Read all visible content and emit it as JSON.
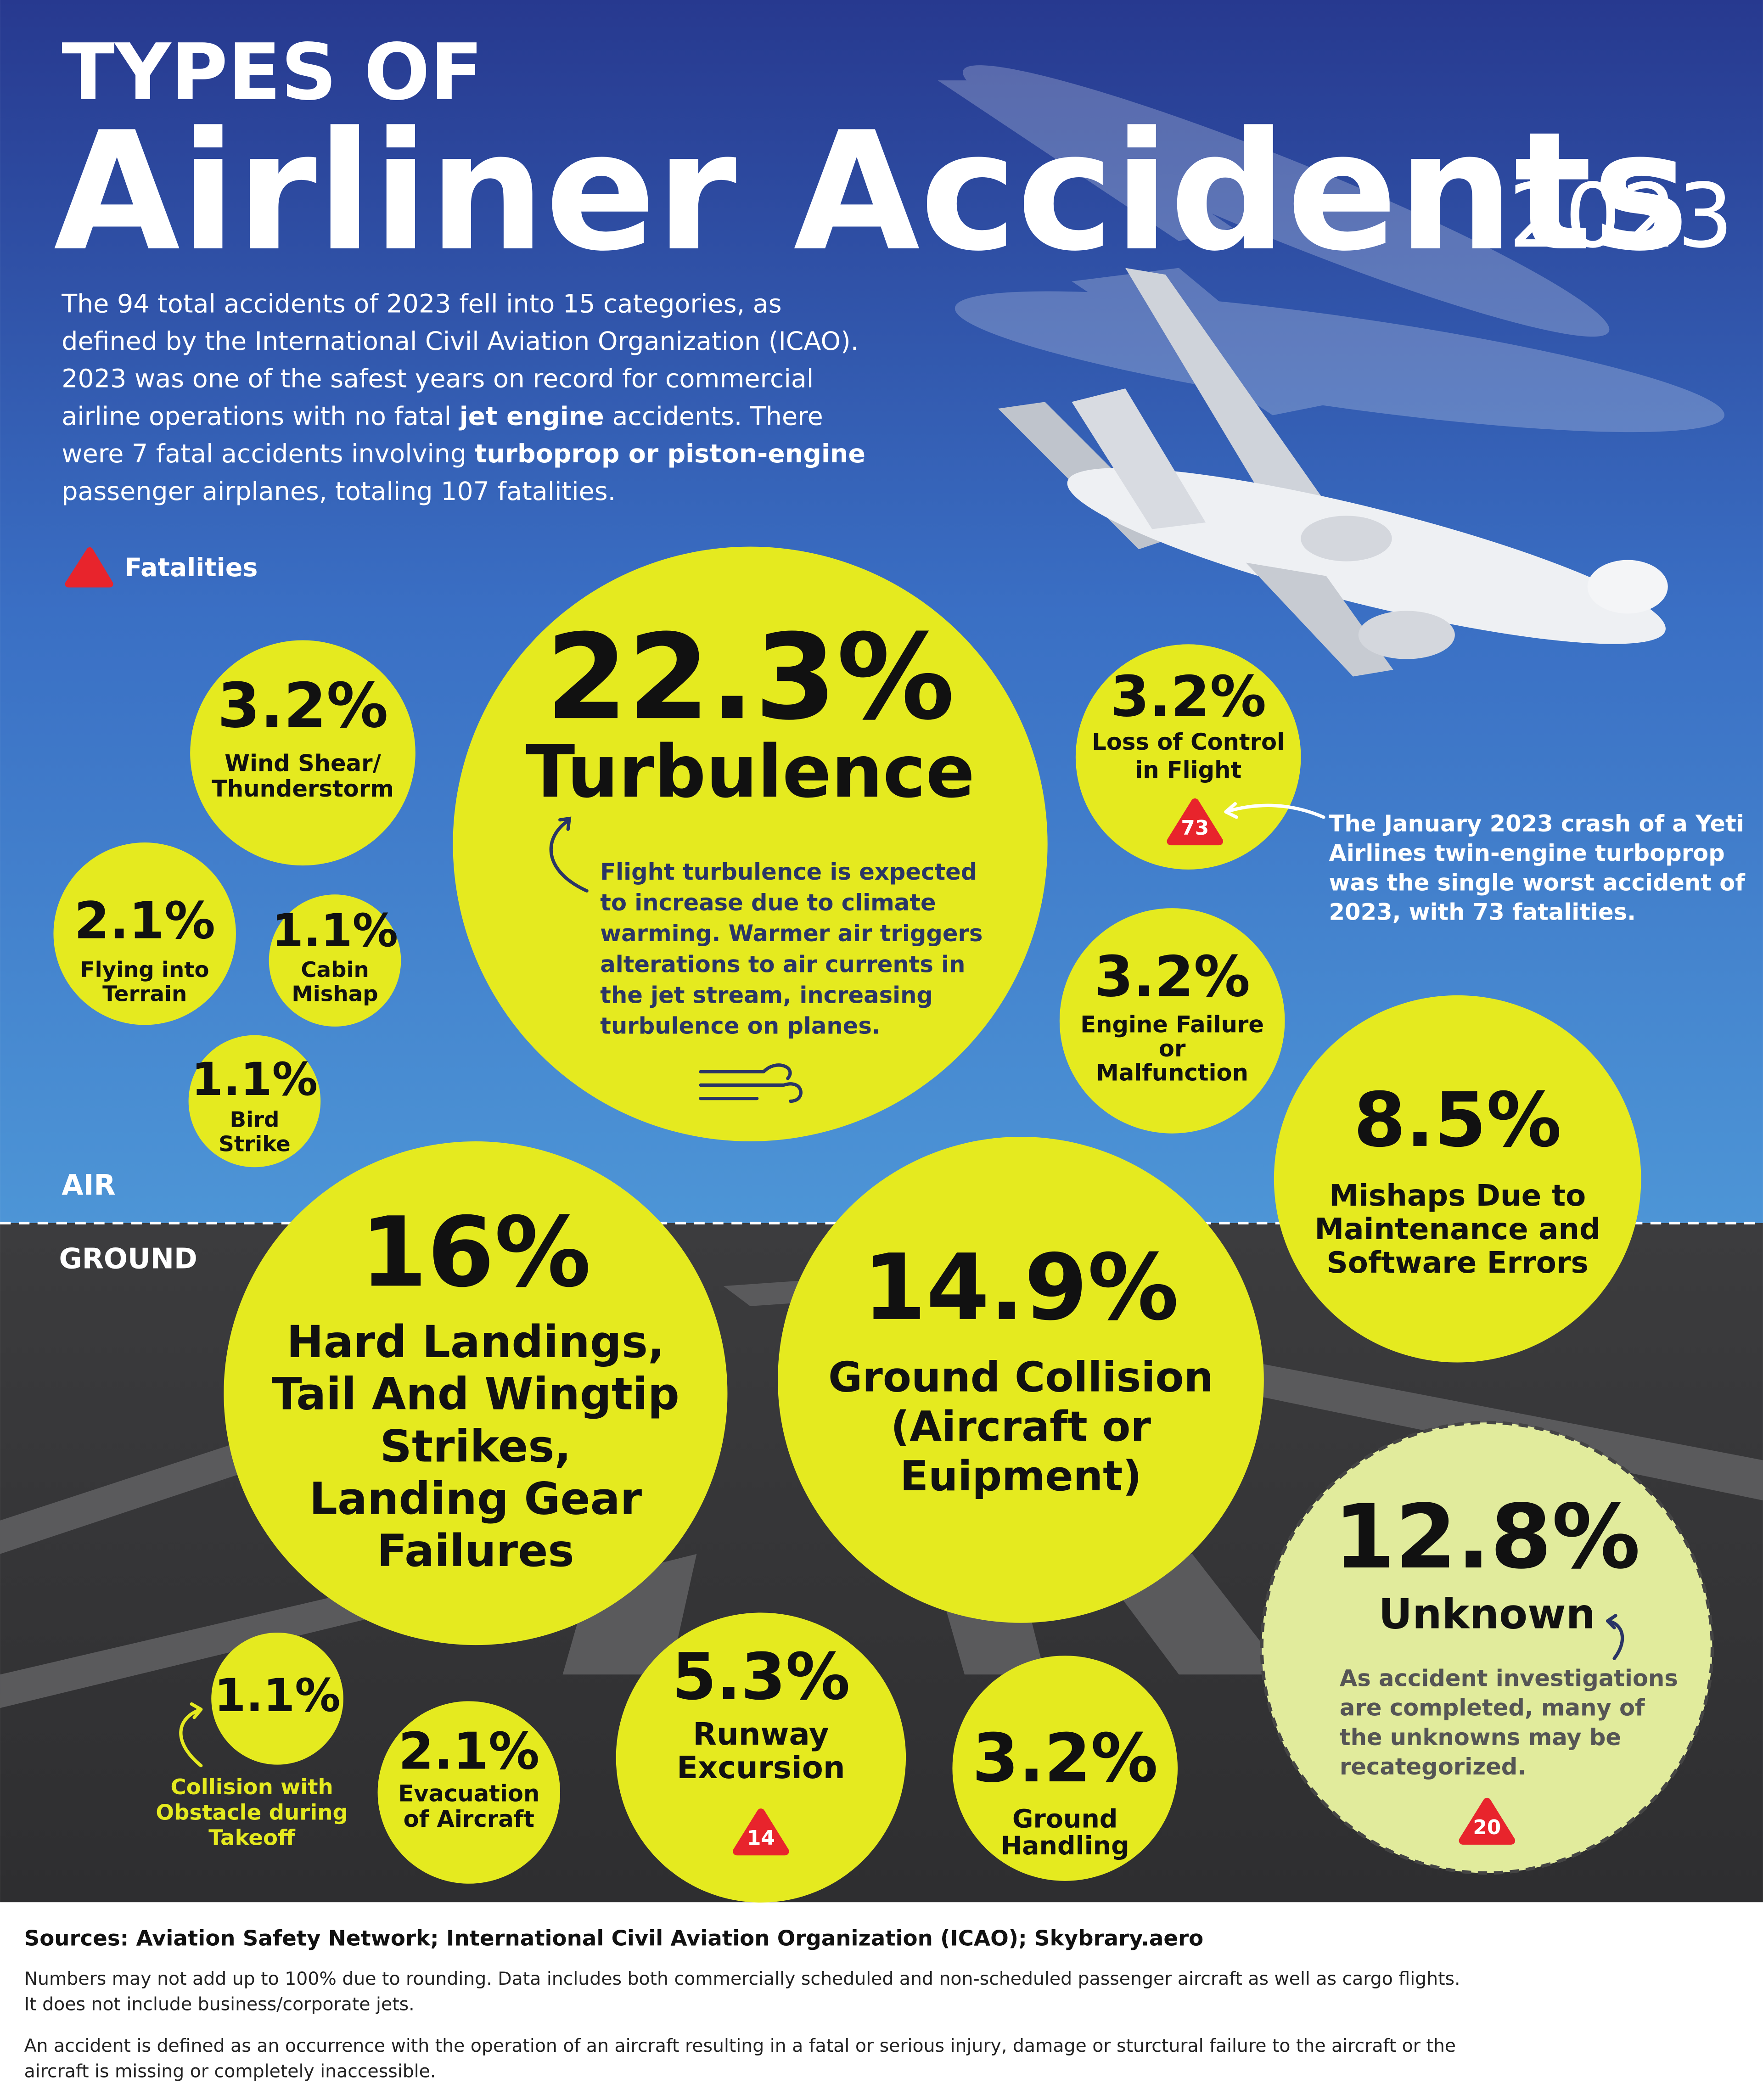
{
  "header": {
    "kicker": "TYPES OF",
    "title": "Airliner Accidents",
    "year": "2023"
  },
  "intro": [
    [
      {
        "text": "The 94 total accidents of 2023 fell into 15 categories, as",
        "bold": false
      }
    ],
    [
      {
        "text": "defined by the International Civil Aviation Organization (ICAO).",
        "bold": false
      }
    ],
    [
      {
        "text": "2023 was one of the safest years on record for commercial",
        "bold": false
      }
    ],
    [
      {
        "text": "airline operations with no fatal ",
        "bold": false
      },
      {
        "text": "jet engine",
        "bold": true
      },
      {
        "text": " accidents. There",
        "bold": false
      }
    ],
    [
      {
        "text": "were 7 fatal accidents involving ",
        "bold": false
      },
      {
        "text": "turboprop or piston-engine",
        "bold": true
      }
    ],
    [
      {
        "text": "passenger airplanes, totaling 107 fatalities.",
        "bold": false
      }
    ]
  ],
  "legend": {
    "label": "Fatalities",
    "color": "#e8242c"
  },
  "sections": {
    "air": "AIR",
    "ground": "GROUND"
  },
  "annotation": [
    "The January 2023 crash of a Yeti",
    "Airlines twin-engine turboprop",
    "was the single worst accident of",
    "2023, with 73 fatalities."
  ],
  "categories": [
    {
      "value": 3.2,
      "value_label": "3.2%",
      "label_lines": [
        "Wind Shear/",
        "Thunderstorm"
      ]
    },
    {
      "value": 22.3,
      "value_label": "22.3%",
      "label_lines": [
        "Turbulence"
      ],
      "description": [
        "Flight turbulence is expected",
        "to increase due to climate",
        "warming. Warmer air triggers",
        "alterations to air currents in",
        "the jet stream, increasing",
        "turbulence on planes."
      ]
    },
    {
      "value": 3.2,
      "value_label": "3.2%",
      "label_lines": [
        "Loss of Control",
        "in Flight"
      ],
      "fatalities": 73
    },
    {
      "value": 2.1,
      "value_label": "2.1%",
      "label_lines": [
        "Flying into",
        "Terrain"
      ]
    },
    {
      "value": 1.1,
      "value_label": "1.1%",
      "label_lines": [
        "Cabin",
        "Mishap"
      ]
    },
    {
      "value": 1.1,
      "value_label": "1.1%",
      "label_lines": [
        "Bird",
        "Strike"
      ]
    },
    {
      "value": 3.2,
      "value_label": "3.2%",
      "label_lines": [
        "Engine Failure",
        "or",
        "Malfunction"
      ]
    },
    {
      "value": 8.5,
      "value_label": "8.5%",
      "label_lines": [
        "Mishaps Due to",
        "Maintenance and",
        "Software Errors"
      ]
    },
    {
      "value": 16,
      "value_label": "16%",
      "label_lines": [
        "Hard Landings,",
        "Tail And Wingtip",
        "Strikes,",
        "Landing Gear",
        "Failures"
      ]
    },
    {
      "value": 14.9,
      "value_label": "14.9%",
      "label_lines": [
        "Ground Collision",
        "(Aircraft or",
        "Euipment)"
      ]
    },
    {
      "value": 12.8,
      "value_label": "12.8%",
      "label_lines": [
        "Unknown"
      ],
      "description": [
        "As accident investigations",
        "are completed, many of",
        "the unknowns may be",
        "recategorized."
      ],
      "fatalities": 20
    },
    {
      "value": 1.1,
      "value_label": "1.1%",
      "label_lines": [
        "Collision with",
        "Obstacle during",
        "Takeoff"
      ]
    },
    {
      "value": 2.1,
      "value_label": "2.1%",
      "label_lines": [
        "Evacuation",
        "of Aircraft"
      ]
    },
    {
      "value": 5.3,
      "value_label": "5.3%",
      "label_lines": [
        "Runway",
        "Excursion"
      ],
      "fatalities": 14
    },
    {
      "value": 3.2,
      "value_label": "3.2%",
      "label_lines": [
        "Ground",
        "Handling"
      ]
    }
  ],
  "sources": "Sources: Aviation Safety Network; International Civil Aviation Organization (ICAO); Skybrary.aero",
  "notes": [
    [
      "Numbers may not add up to 100% due to rounding. Data includes both commercially scheduled and non-scheduled passenger aircraft as well as cargo flights.",
      "It does not include business/corporate jets."
    ],
    [
      "An accident is defined as an occurrence with the operation of an aircraft resulting in a fatal or serious injury, damage or sturctural failure to the aircraft or the",
      "aircraft is missing or completely inaccessible."
    ]
  ]
}
